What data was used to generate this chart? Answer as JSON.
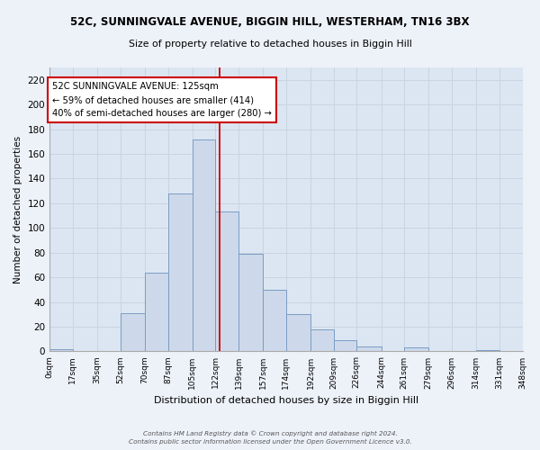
{
  "title": "52C, SUNNINGVALE AVENUE, BIGGIN HILL, WESTERHAM, TN16 3BX",
  "subtitle": "Size of property relative to detached houses in Biggin Hill",
  "xlabel": "Distribution of detached houses by size in Biggin Hill",
  "ylabel": "Number of detached properties",
  "bar_color": "#cdd9ea",
  "bar_edge_color": "#7a9cc4",
  "grid_color": "#c8d4e3",
  "bg_color": "#dce6f2",
  "fig_bg_color": "#edf2f9",
  "property_line_value": 125,
  "property_line_color": "#cc0000",
  "annotation_text": "52C SUNNINGVALE AVENUE: 125sqm\n← 59% of detached houses are smaller (414)\n40% of semi-detached houses are larger (280) →",
  "annotation_box_facecolor": "white",
  "annotation_box_edgecolor": "#cc0000",
  "bin_edges": [
    0,
    17,
    35,
    52,
    70,
    87,
    105,
    122,
    139,
    157,
    174,
    192,
    209,
    226,
    244,
    261,
    279,
    296,
    314,
    331,
    348
  ],
  "bar_heights": [
    2,
    0,
    0,
    31,
    64,
    128,
    172,
    113,
    79,
    50,
    30,
    18,
    9,
    4,
    0,
    3,
    0,
    0,
    1,
    0
  ],
  "tick_labels": [
    "0sqm",
    "17sqm",
    "35sqm",
    "52sqm",
    "70sqm",
    "87sqm",
    "105sqm",
    "122sqm",
    "139sqm",
    "157sqm",
    "174sqm",
    "192sqm",
    "209sqm",
    "226sqm",
    "244sqm",
    "261sqm",
    "279sqm",
    "296sqm",
    "314sqm",
    "331sqm",
    "348sqm"
  ],
  "ylim": [
    0,
    230
  ],
  "yticks": [
    0,
    20,
    40,
    60,
    80,
    100,
    120,
    140,
    160,
    180,
    200,
    220
  ],
  "footer_line1": "Contains HM Land Registry data © Crown copyright and database right 2024.",
  "footer_line2": "Contains public sector information licensed under the Open Government Licence v3.0."
}
